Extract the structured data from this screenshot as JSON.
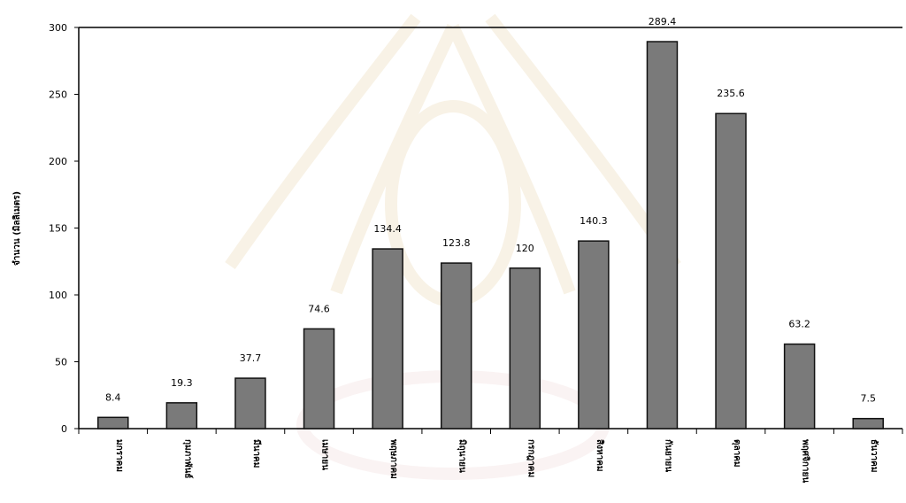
{
  "chart_data": {
    "type": "bar",
    "ylabel": "จำนวน (มิลลิเมตร)",
    "ylim": [
      0,
      300
    ],
    "yticks": [
      0,
      50,
      100,
      150,
      200,
      250,
      300
    ],
    "categories": [
      "มกราคม",
      "กุมภาพันธ์",
      "มีนาคม",
      "เมษายน",
      "พฤษภาคม",
      "มิถุนายน",
      "กรกฎาคม",
      "สิงหาคม",
      "กันยายน",
      "ตุลาคม",
      "พฤศจิกายน",
      "ธันวาคม"
    ],
    "values": [
      8.4,
      19.3,
      37.7,
      74.6,
      134.4,
      123.8,
      120,
      140.3,
      289.4,
      235.6,
      63.2,
      7.5
    ],
    "data_labels": [
      "8.4",
      "19.3",
      "37.7",
      "74.6",
      "134.4",
      "123.8",
      "120",
      "140.3",
      "289.4",
      "235.6",
      "63.2",
      "7.5"
    ],
    "grid": false,
    "legend": "none",
    "colors": {
      "bar": "#7a7a7a",
      "bar_stroke": "#111111",
      "axis": "#000000"
    }
  }
}
